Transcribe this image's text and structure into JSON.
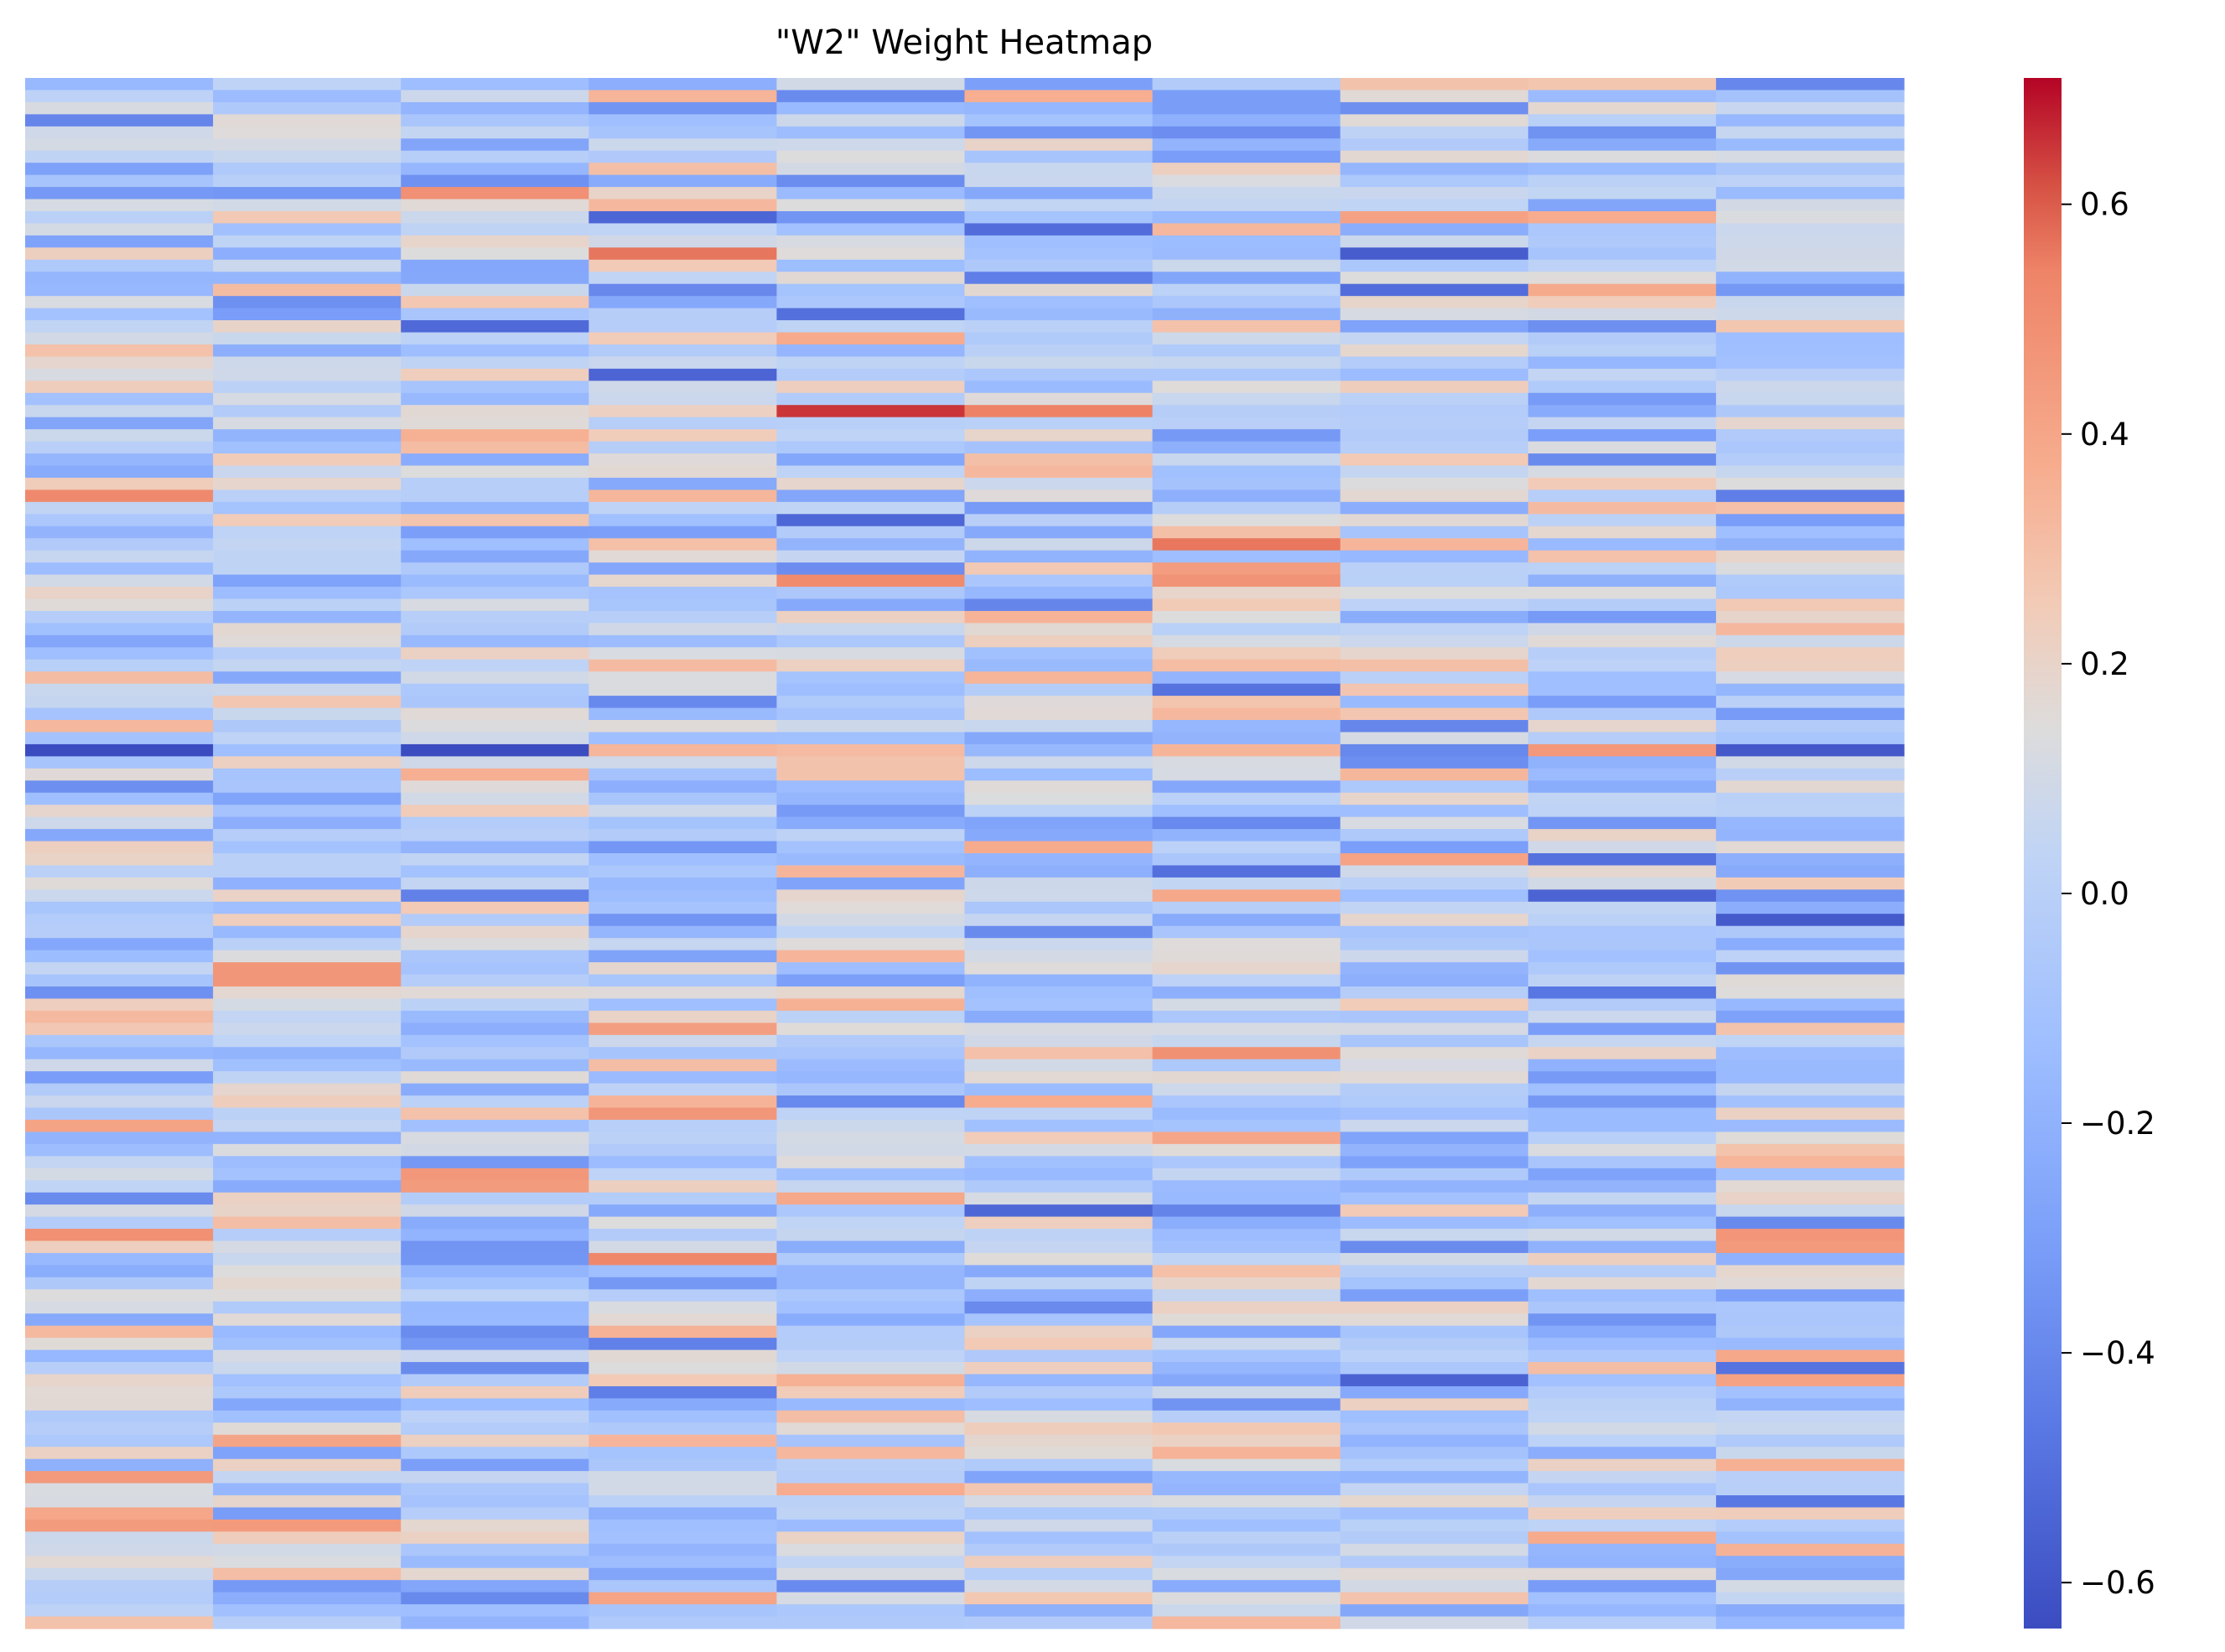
{
  "chart_data": {
    "type": "heatmap",
    "title": "\"W2\" Weight Heatmap",
    "xlabel": "",
    "ylabel": "",
    "columns": 10,
    "rows": 128,
    "value_range": [
      -0.64,
      0.71
    ],
    "colormap": "coolwarm",
    "colorbar": {
      "ticks": [
        -0.6,
        -0.4,
        -0.2,
        0.0,
        0.2,
        0.4,
        0.6
      ],
      "tick_labels": [
        "−0.6",
        "−0.4",
        "−0.2",
        "0.0",
        "0.2",
        "0.4",
        "0.6"
      ],
      "placement": "right"
    },
    "legend": "none",
    "grid": false,
    "values_note": "cell values are pseudo-random approximations in [-0.64, 0.71]",
    "seed": 20231
  }
}
